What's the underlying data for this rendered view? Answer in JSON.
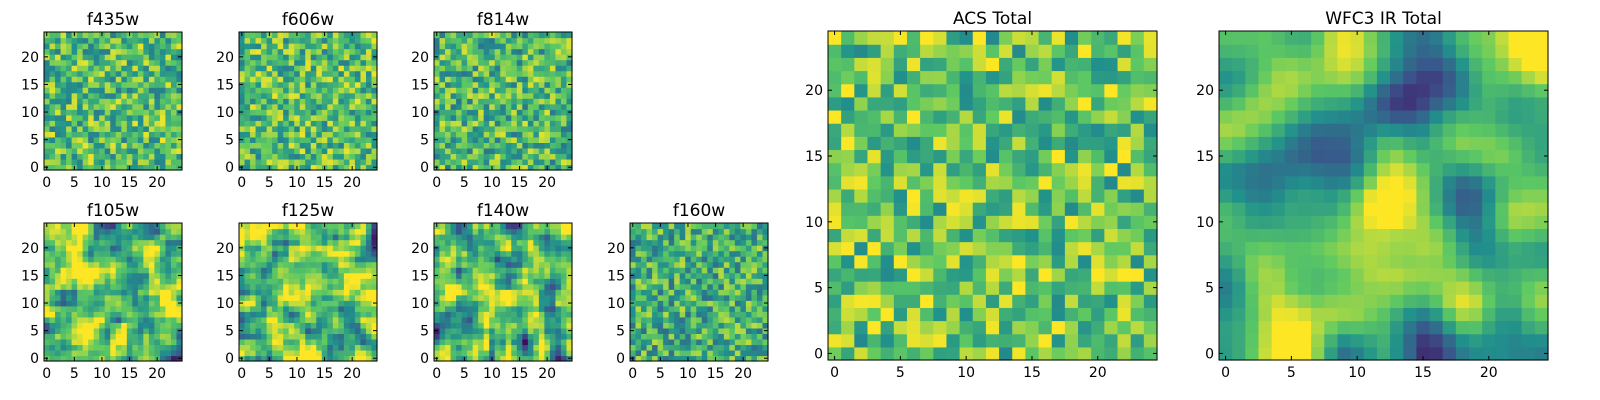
{
  "figure": {
    "colormap": "viridis",
    "colormap_stops": [
      "#440154",
      "#3b528b",
      "#21918c",
      "#5ec962",
      "#fde725"
    ],
    "frame_color": "#000000",
    "background": "#ffffff"
  },
  "chart_data": [
    {
      "type": "heatmap",
      "id": "f435w",
      "title": "f435w",
      "grid": [
        25,
        25
      ],
      "xlim": [
        -0.5,
        24.5
      ],
      "ylim": [
        -0.5,
        24.5
      ],
      "xticks": [
        0,
        5,
        10,
        15,
        20
      ],
      "xtick_labels": [
        "0",
        "5",
        "10",
        "15",
        "20"
      ],
      "yticks": [
        0,
        5,
        10,
        15,
        20
      ],
      "ytick_labels": [
        "0",
        "5",
        "10",
        "15",
        "20"
      ],
      "value_range": [
        0,
        1
      ],
      "texture": "noisy",
      "mean": 0.68,
      "seed": 11
    },
    {
      "type": "heatmap",
      "id": "f606w",
      "title": "f606w",
      "grid": [
        25,
        25
      ],
      "xlim": [
        -0.5,
        24.5
      ],
      "ylim": [
        -0.5,
        24.5
      ],
      "xticks": [
        0,
        5,
        10,
        15,
        20
      ],
      "xtick_labels": [
        "0",
        "5",
        "10",
        "15",
        "20"
      ],
      "yticks": [
        0,
        5,
        10,
        15,
        20
      ],
      "ytick_labels": [
        "0",
        "5",
        "10",
        "15",
        "20"
      ],
      "value_range": [
        0,
        1
      ],
      "texture": "noisy",
      "mean": 0.7,
      "seed": 23
    },
    {
      "type": "heatmap",
      "id": "f814w",
      "title": "f814w",
      "grid": [
        25,
        25
      ],
      "xlim": [
        -0.5,
        24.5
      ],
      "ylim": [
        -0.5,
        24.5
      ],
      "xticks": [
        0,
        5,
        10,
        15,
        20
      ],
      "xtick_labels": [
        "0",
        "5",
        "10",
        "15",
        "20"
      ],
      "yticks": [
        0,
        5,
        10,
        15,
        20
      ],
      "ytick_labels": [
        "0",
        "5",
        "10",
        "15",
        "20"
      ],
      "value_range": [
        0,
        1
      ],
      "texture": "noisy",
      "mean": 0.68,
      "seed": 37
    },
    {
      "type": "heatmap",
      "id": "f105w",
      "title": "f105w",
      "grid": [
        25,
        25
      ],
      "xlim": [
        -0.5,
        24.5
      ],
      "ylim": [
        -0.5,
        24.5
      ],
      "xticks": [
        0,
        5,
        10,
        15,
        20
      ],
      "xtick_labels": [
        "0",
        "5",
        "10",
        "15",
        "20"
      ],
      "yticks": [
        0,
        5,
        10,
        15,
        20
      ],
      "ytick_labels": [
        "0",
        "5",
        "10",
        "15",
        "20"
      ],
      "value_range": [
        0,
        1
      ],
      "texture": "smooth",
      "mean": 0.72,
      "seed": 41
    },
    {
      "type": "heatmap",
      "id": "f125w",
      "title": "f125w",
      "grid": [
        25,
        25
      ],
      "xlim": [
        -0.5,
        24.5
      ],
      "ylim": [
        -0.5,
        24.5
      ],
      "xticks": [
        0,
        5,
        10,
        15,
        20
      ],
      "xtick_labels": [
        "0",
        "5",
        "10",
        "15",
        "20"
      ],
      "yticks": [
        0,
        5,
        10,
        15,
        20
      ],
      "ytick_labels": [
        "0",
        "5",
        "10",
        "15",
        "20"
      ],
      "value_range": [
        0,
        1
      ],
      "texture": "smooth",
      "mean": 0.73,
      "seed": 53
    },
    {
      "type": "heatmap",
      "id": "f140w",
      "title": "f140w",
      "grid": [
        25,
        25
      ],
      "xlim": [
        -0.5,
        24.5
      ],
      "ylim": [
        -0.5,
        24.5
      ],
      "xticks": [
        0,
        5,
        10,
        15,
        20
      ],
      "xtick_labels": [
        "0",
        "5",
        "10",
        "15",
        "20"
      ],
      "yticks": [
        0,
        5,
        10,
        15,
        20
      ],
      "ytick_labels": [
        "0",
        "5",
        "10",
        "15",
        "20"
      ],
      "value_range": [
        0,
        1
      ],
      "texture": "smooth",
      "mean": 0.68,
      "seed": 67
    },
    {
      "type": "heatmap",
      "id": "f160w",
      "title": "f160w",
      "grid": [
        25,
        25
      ],
      "xlim": [
        -0.5,
        24.5
      ],
      "ylim": [
        -0.5,
        24.5
      ],
      "xticks": [
        0,
        5,
        10,
        15,
        20
      ],
      "xtick_labels": [
        "0",
        "5",
        "10",
        "15",
        "20"
      ],
      "yticks": [
        0,
        5,
        10,
        15,
        20
      ],
      "ytick_labels": [
        "0",
        "5",
        "10",
        "15",
        "20"
      ],
      "value_range": [
        0,
        1
      ],
      "texture": "noisy",
      "mean": 0.63,
      "seed": 79
    },
    {
      "type": "heatmap",
      "id": "acs-total",
      "title": "ACS Total",
      "grid": [
        25,
        25
      ],
      "xlim": [
        -0.5,
        24.5
      ],
      "ylim": [
        -0.5,
        24.5
      ],
      "xticks": [
        0,
        5,
        10,
        15,
        20
      ],
      "xtick_labels": [
        "0",
        "5",
        "10",
        "15",
        "20"
      ],
      "yticks": [
        0,
        5,
        10,
        15,
        20
      ],
      "ytick_labels": [
        "0",
        "5",
        "10",
        "15",
        "20"
      ],
      "value_range": [
        0,
        1
      ],
      "texture": "noisy",
      "mean": 0.74,
      "seed": 97
    },
    {
      "type": "heatmap",
      "id": "wfc3-ir-total",
      "title": "WFC3 IR Total",
      "grid": [
        25,
        25
      ],
      "xlim": [
        -0.5,
        24.5
      ],
      "ylim": [
        -0.5,
        24.5
      ],
      "xticks": [
        0,
        5,
        10,
        15,
        20
      ],
      "xtick_labels": [
        "0",
        "5",
        "10",
        "15",
        "20"
      ],
      "yticks": [
        0,
        5,
        10,
        15,
        20
      ],
      "ytick_labels": [
        "0",
        "5",
        "10",
        "15",
        "20"
      ],
      "value_range": [
        0,
        1
      ],
      "texture": "very-smooth",
      "mean": 0.66,
      "seed": 101
    }
  ]
}
